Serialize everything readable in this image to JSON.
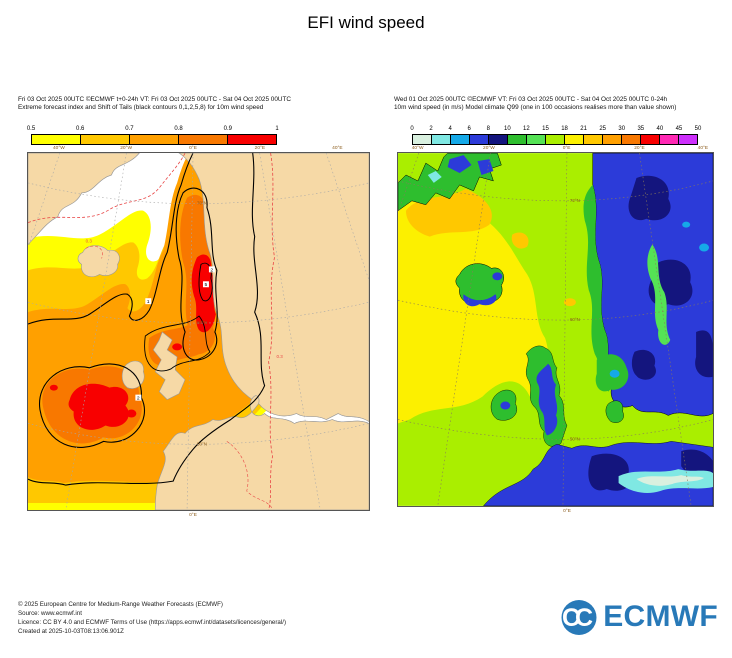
{
  "title": "EFI wind speed",
  "left_panel": {
    "header_line1": "Fri 03 Oct 2025 00UTC ©ECMWF t+0-24h  VT: Fri 03 Oct 2025 00UTC - Sat 04 Oct 2025 00UTC",
    "header_line2": "Extreme forecast index and Shift of Tails (black contours 0,1,2,5,8) for 10m wind speed",
    "colorbar": {
      "labels": [
        "0.5",
        "0.6",
        "0.7",
        "0.8",
        "0.9",
        "1"
      ],
      "colors": [
        "#ffff00",
        "#ffc800",
        "#ffa000",
        "#f87800",
        "#f80000"
      ]
    }
  },
  "right_panel": {
    "header_line1": "Wed 01 Oct 2025 00UTC ©ECMWF VT: Fri 03 Oct 2025 00UTC - Sat 04 Oct 2025 00UTC   0-24h",
    "header_line2": "10m wind speed (in m/s)  Model climate Q99 (one in 100 occasions realises more than value shown)",
    "colorbar": {
      "labels": [
        "0",
        "2",
        "4",
        "6",
        "8",
        "10",
        "12",
        "15",
        "18",
        "21",
        "25",
        "30",
        "35",
        "40",
        "45",
        "50"
      ],
      "colors": [
        "#d9f0df",
        "#7fe8e3",
        "#15a9e8",
        "#2c3bd9",
        "#14157e",
        "#2ebe2e",
        "#55e255",
        "#aaee00",
        "#fcf000",
        "#ffc800",
        "#ffa000",
        "#f87800",
        "#f80000",
        "#ff28b4",
        "#cd2ffc"
      ]
    }
  },
  "maps": {
    "left": {
      "land_color": "#f6d9a6",
      "top_edge_labels": [
        "40°W",
        "20°W",
        "0°E",
        "20°E",
        "40°E"
      ],
      "bottom_edge_label": "0°E",
      "lat_labels": [
        "70°N",
        "60°N",
        "50°N"
      ],
      "dashed_contour_label": "0.3",
      "sot_labels": [
        "1",
        "2",
        "2",
        "5"
      ]
    },
    "right": {
      "top_edge_labels": [
        "40°W",
        "20°W",
        "0°E",
        "20°E",
        "40°E"
      ],
      "bottom_edge_label": "0°E",
      "lat_labels": [
        "72°N",
        "60°N",
        "50°N"
      ]
    }
  },
  "footer": {
    "line1": "© 2025 European Centre for Medium-Range Weather Forecasts (ECMWF)",
    "line2": "Source: www.ecmwf.int",
    "line3": "Licence: CC BY 4.0 and ECMWF Terms of Use (https://apps.ecmwf.int/datasets/licences/general/)",
    "line4": "Created at 2025-10-03T08:13:06.901Z"
  },
  "logo": {
    "text": "ECMWF",
    "color": "#2879b8"
  }
}
